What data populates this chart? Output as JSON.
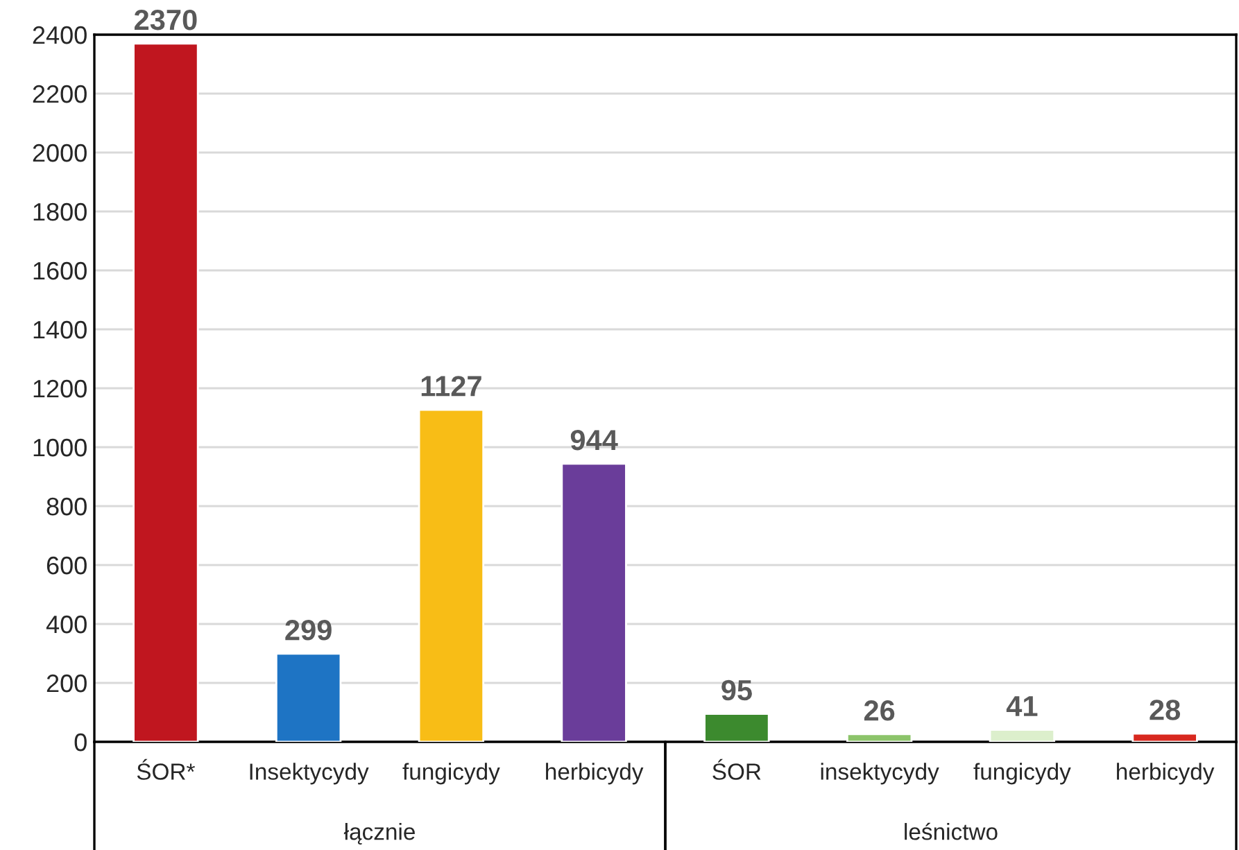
{
  "chart_data": {
    "type": "bar",
    "categories": [
      "ŚOR*",
      "Insektycydy",
      "fungicydy",
      "herbicydy",
      "ŚOR",
      "insektycydy",
      "fungicydy",
      "herbicydy"
    ],
    "values": [
      2370,
      299,
      1127,
      944,
      95,
      26,
      41,
      28
    ],
    "colors": [
      "#c0161f",
      "#1e74c4",
      "#f8bd16",
      "#6a3d9a",
      "#3c8a2e",
      "#8cc46a",
      "#dcefcc",
      "#d8281f"
    ],
    "ylim": [
      0,
      2400
    ],
    "yticks": [
      0,
      200,
      400,
      600,
      800,
      1000,
      1200,
      1400,
      1600,
      1800,
      2000,
      2200,
      2400
    ],
    "grid": "y",
    "data_labels": true,
    "annotations": [
      "łącznie",
      "leśnictwo"
    ]
  }
}
